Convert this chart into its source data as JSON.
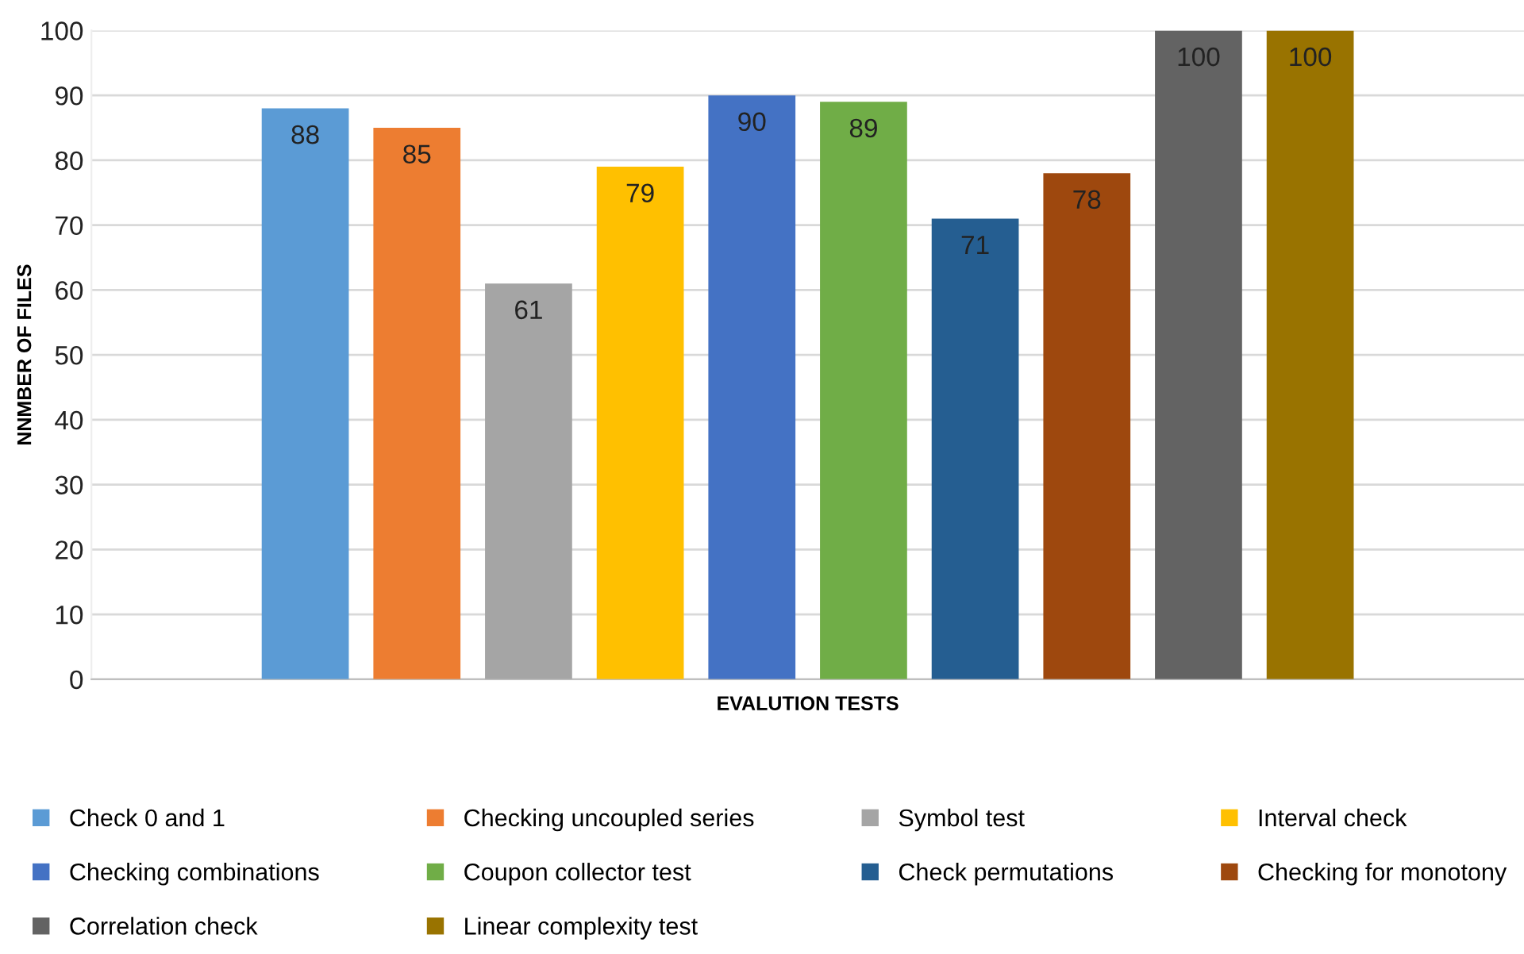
{
  "chart_data": {
    "type": "bar",
    "xlabel": "EVALUTION TESTS",
    "ylabel": "NNMBER OF FILES",
    "categories": [
      null
    ],
    "series": [
      {
        "name": "Check 0 and 1",
        "color": "#5b9bd5",
        "values": [
          88
        ]
      },
      {
        "name": "Checking uncoupled series",
        "color": "#ed7d31",
        "values": [
          85
        ]
      },
      {
        "name": "Symbol test",
        "color": "#a5a5a5",
        "values": [
          61
        ]
      },
      {
        "name": "Interval check",
        "color": "#ffc000",
        "values": [
          79
        ]
      },
      {
        "name": "Checking combinations",
        "color": "#4472c4",
        "values": [
          90
        ]
      },
      {
        "name": "Coupon collector test",
        "color": "#70ad47",
        "values": [
          89
        ]
      },
      {
        "name": "Check permutations",
        "color": "#255e91",
        "values": [
          71
        ]
      },
      {
        "name": "Checking for monotony",
        "color": "#9e480e",
        "values": [
          78
        ]
      },
      {
        "name": "Correlation check",
        "color": "#636363",
        "values": [
          100
        ]
      },
      {
        "name": "Linear complexity test",
        "color": "#997300",
        "values": [
          100
        ]
      }
    ],
    "ylim": [
      0,
      100
    ],
    "yticks": [
      0,
      10,
      20,
      30,
      40,
      50,
      60,
      70,
      80,
      90,
      100
    ],
    "grid": "y",
    "legend": "bottom",
    "data_labels": true
  }
}
